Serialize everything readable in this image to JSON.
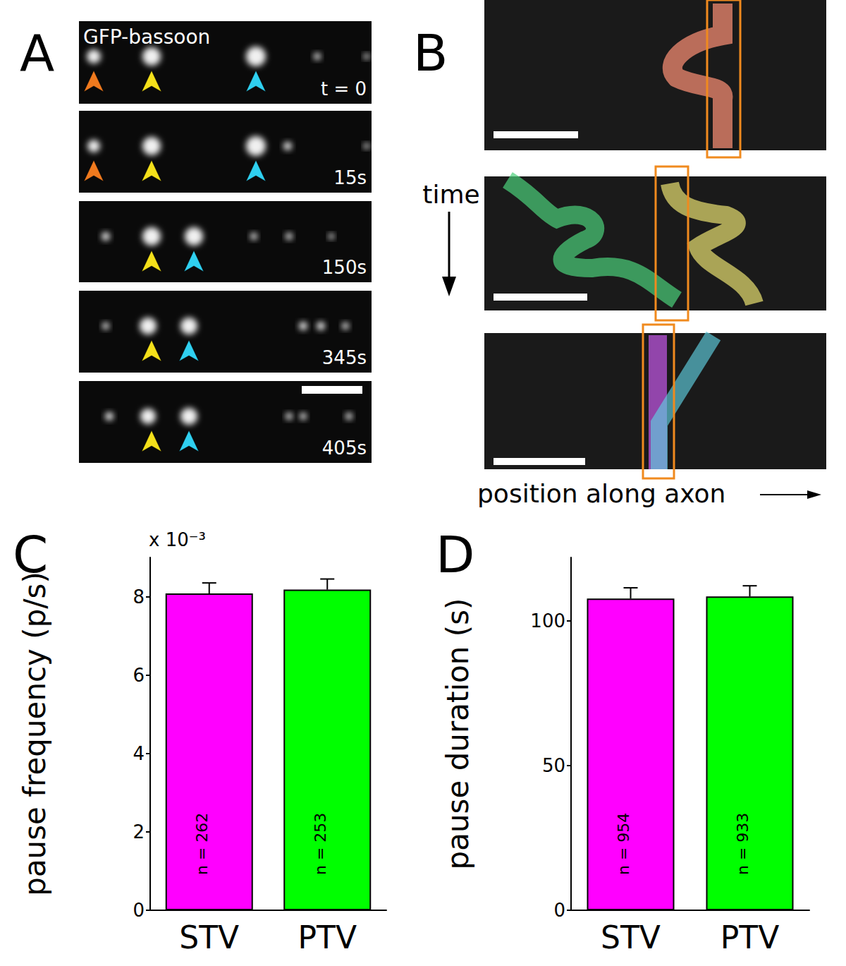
{
  "panels": {
    "A": {
      "label": "A",
      "channel": "GFP-bassoon",
      "times": [
        "t = 0",
        "15s",
        "150s",
        "345s",
        "405s"
      ]
    },
    "B": {
      "label": "B",
      "time_label": "time",
      "position_label": "position along axon"
    }
  },
  "chart_data": [
    {
      "type": "bar",
      "title": "C",
      "categories": [
        "STV",
        "PTV"
      ],
      "values": [
        8.08,
        8.18
      ],
      "errors": [
        0.27,
        0.27
      ],
      "colors": [
        "#ff00ff",
        "#00ff00"
      ],
      "n_labels": [
        "n = 262",
        "n = 253"
      ],
      "y_label": "pause frequency (p/s)",
      "y_scale_label": "x 10⁻³",
      "ylim": [
        0,
        9
      ],
      "yticks": [
        0,
        2,
        4,
        6,
        8
      ],
      "grid": false
    },
    {
      "type": "bar",
      "title": "D",
      "categories": [
        "STV",
        "PTV"
      ],
      "values": [
        107.8,
        108.5
      ],
      "errors": [
        3.7,
        3.7
      ],
      "colors": [
        "#ff00ff",
        "#00ff00"
      ],
      "n_labels": [
        "n = 954",
        "n = 933"
      ],
      "y_label": "pause duration (s)",
      "ylim": [
        0,
        122
      ],
      "yticks": [
        0,
        50,
        100
      ],
      "grid": false
    }
  ]
}
